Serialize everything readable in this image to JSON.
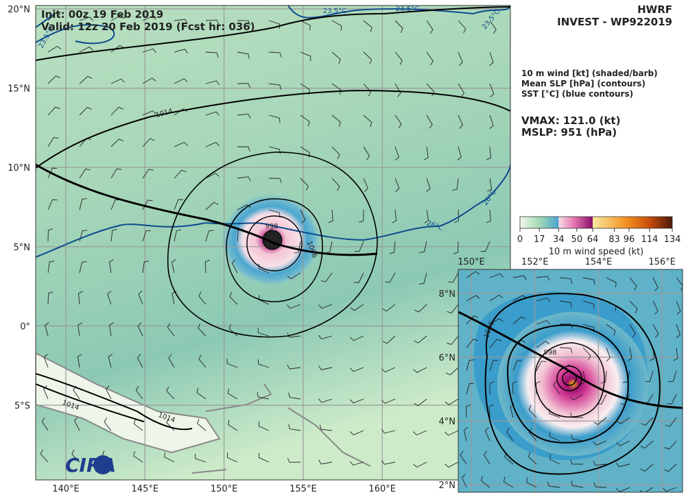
{
  "header": {
    "model": "HWRF",
    "storm": "INVEST - WP922019",
    "init": "Init:  00z 19 Feb 2019",
    "valid": "Valid: 12z 20 Feb 2019 (Fcst hr: 036)"
  },
  "fields": [
    "10 m wind [kt] (shaded/barb)",
    "Mean SLP [hPa] (contours)",
    "SST [°C] (blue contours)"
  ],
  "stats": [
    "VMAX: 121.0 (kt)",
    "MSLP:  951 (hPa)"
  ],
  "colorbar": {
    "label": "10 m wind speed (kt)",
    "range": [
      0,
      134
    ],
    "ticks": [
      0,
      17,
      34,
      50,
      64,
      83,
      96,
      114,
      134
    ]
  },
  "main_map": {
    "lat_labels": [
      "20°N",
      "15°N",
      "10°N",
      "5°N",
      "0°",
      "5°S"
    ],
    "lon_labels": [
      "140°E",
      "145°E",
      "150°E",
      "155°E",
      "160°E"
    ],
    "slp_labels": [
      "1014",
      "998",
      "1006",
      "1014",
      "1014"
    ],
    "sst_labels": [
      "23.5°C",
      "23.5°C",
      "23.5°C",
      "23.5°C",
      "26°C",
      "26°C"
    ]
  },
  "inset_map": {
    "lat_labels": [
      "8°N",
      "6°N",
      "4°N",
      "2°N"
    ],
    "lon_labels": [
      "150°E",
      "152°E",
      "154°E",
      "156°E"
    ],
    "slp_labels": [
      "998",
      "1006"
    ]
  },
  "logo": "CIRA"
}
